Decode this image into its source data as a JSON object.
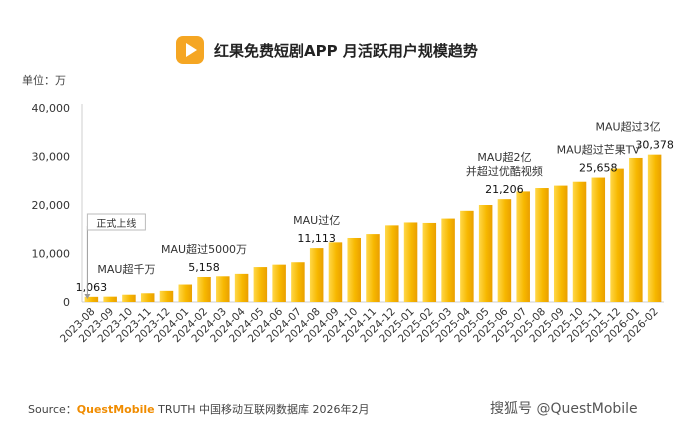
{
  "header": {
    "title": "红果免费短剧APP 月活跃用户规模趋势",
    "unit": "单位：万"
  },
  "footer": {
    "source_prefix": "Source：",
    "source_brand": "QuestMobile",
    "source_rest": " TRUTH 中国移动互联网数据库 2026年2月",
    "watermark": "搜狐号 @QuestMobile"
  },
  "colors": {
    "bar": "#f7b800",
    "bar_light": "#ffd84a",
    "bar_dark": "#ea9f00",
    "brand": "#f08c00"
  },
  "chart_data": {
    "type": "bar",
    "title": "红果免费短剧APP 月活跃用户规模趋势",
    "ylabel": "单位：万",
    "ylim": [
      0,
      40000
    ],
    "yticks": [
      "0",
      "10,000",
      "20,000",
      "30,000",
      "40,000"
    ],
    "grid": false,
    "categories": [
      "2023-08",
      "2023-09",
      "2023-10",
      "2023-11",
      "2023-12",
      "2024-01",
      "2024-02",
      "2024-03",
      "2024-04",
      "2024-05",
      "2024-06",
      "2024-07",
      "2024-08",
      "2024-09",
      "2024-10",
      "2024-11",
      "2024-12",
      "2025-01",
      "2025-02",
      "2025-03",
      "2025-04",
      "2025-05",
      "2025-06",
      "2025-07",
      "2025-08",
      "2025-09",
      "2025-10",
      "2025-11",
      "2025-12",
      "2026-01",
      "2026-02"
    ],
    "values": [
      1063,
      1100,
      1500,
      1800,
      2300,
      3600,
      5158,
      5300,
      5800,
      7200,
      7700,
      8200,
      11113,
      12300,
      13200,
      14000,
      15800,
      16400,
      16300,
      17200,
      18800,
      20000,
      21206,
      22800,
      23500,
      24000,
      24800,
      25658,
      27500,
      29700,
      30378
    ],
    "data_labels": [
      {
        "index": 0,
        "text": "1,063"
      },
      {
        "index": 6,
        "text": "5,158"
      },
      {
        "index": 12,
        "text": "11,113"
      },
      {
        "index": 22,
        "text": "21,206"
      },
      {
        "index": 27,
        "text": "25,658"
      },
      {
        "index": 30,
        "text": "30,378"
      }
    ],
    "annotations": [
      {
        "index": 0,
        "lines": [
          "正式上线"
        ],
        "boxed": true
      },
      {
        "index": 0,
        "lines": [
          "MAU超千万"
        ]
      },
      {
        "index": 6,
        "lines": [
          "MAU超过5000万"
        ]
      },
      {
        "index": 12,
        "lines": [
          "MAU过亿"
        ]
      },
      {
        "index": 22,
        "lines": [
          "MAU超2亿",
          "并超过优酷视频"
        ]
      },
      {
        "index": 27,
        "lines": [
          "MAU超过芒果TV"
        ]
      },
      {
        "index": 30,
        "lines": [
          "MAU超过3亿"
        ]
      }
    ]
  }
}
